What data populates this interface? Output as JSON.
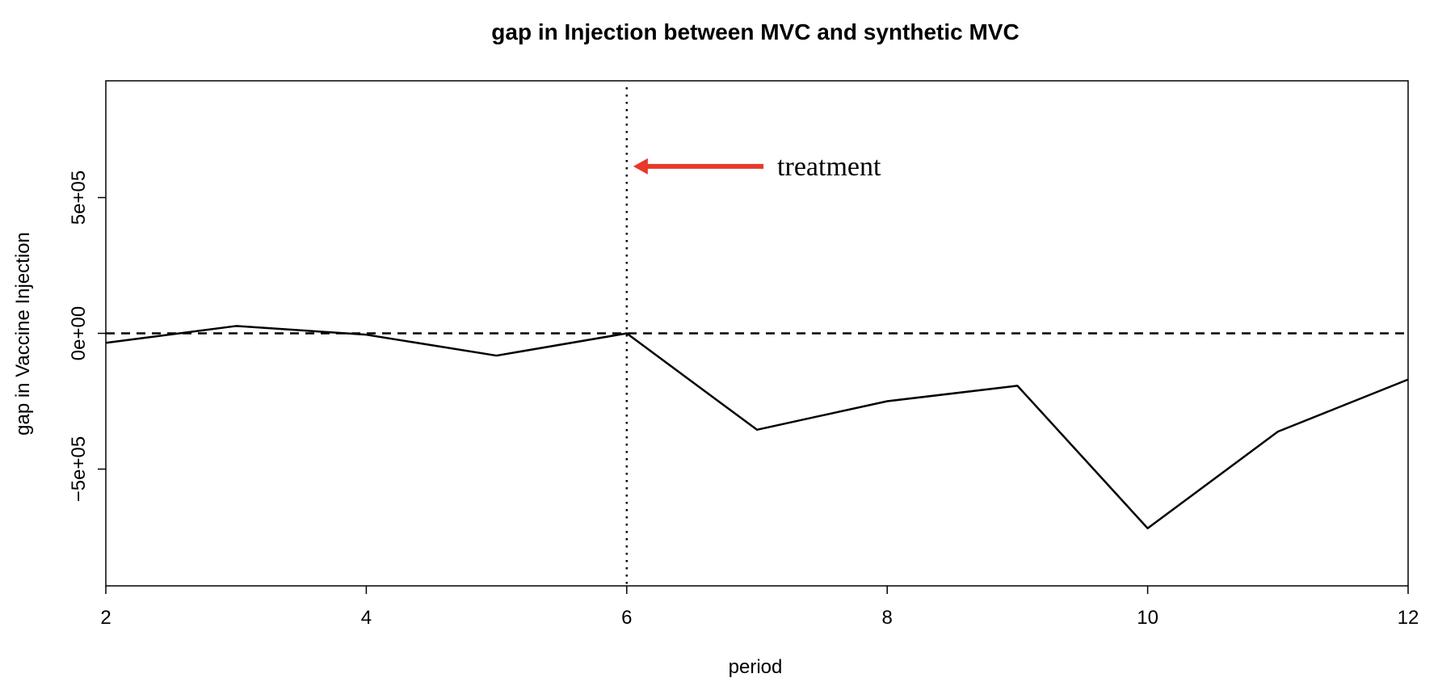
{
  "colors": {
    "line": "#000000",
    "arrow": "#e8392b",
    "background": "#ffffff"
  },
  "chart_data": {
    "type": "line",
    "title": "gap in Injection between MVC and synthetic MVC",
    "xlabel": "period",
    "ylabel": "gap in Vaccine Injection",
    "xlim": [
      2,
      12
    ],
    "ylim": [
      -930000,
      930000
    ],
    "x_ticks": [
      2,
      4,
      6,
      8,
      10,
      12
    ],
    "x_tick_labels": [
      "2",
      "4",
      "6",
      "8",
      "10",
      "12"
    ],
    "y_ticks": [
      -500000,
      0,
      500000
    ],
    "y_tick_labels": [
      "−5e+05",
      "0e+00",
      "5e+05"
    ],
    "grid": false,
    "legend": "none",
    "series": [
      {
        "x": [
          2,
          3,
          4,
          5,
          6,
          7,
          8,
          9,
          10,
          11,
          12
        ],
        "values": [
          -35000,
          27000,
          -5000,
          -82000,
          0,
          -355000,
          -250000,
          -193000,
          -718000,
          -362000,
          -170000
        ]
      }
    ],
    "reference_lines": {
      "horizontal_dashed_y": 0,
      "vertical_dotted_x": 6
    },
    "annotation": {
      "text": "treatment",
      "arrow_from_x": 7.05,
      "arrow_to_x": 6.05,
      "y": 615000
    }
  }
}
